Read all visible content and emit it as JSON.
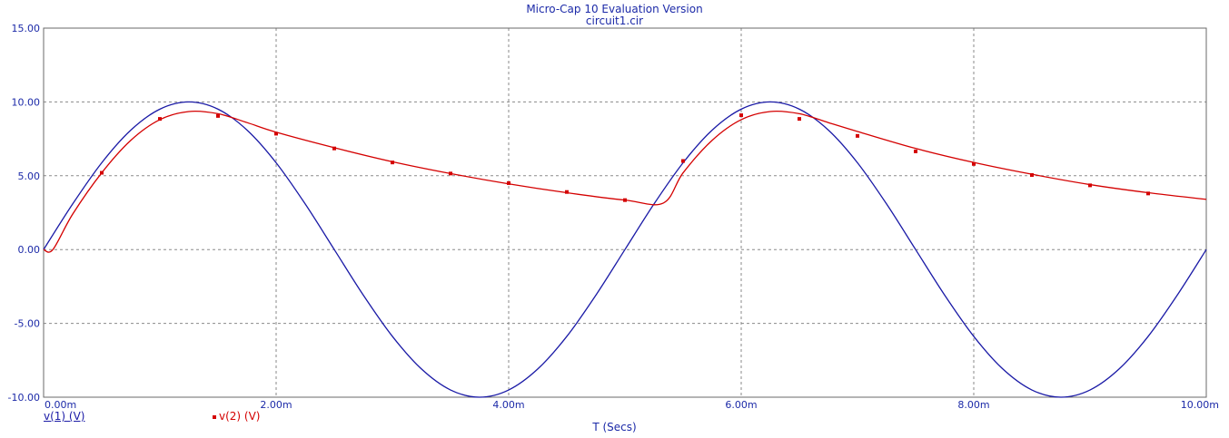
{
  "window": {
    "title": "Micro-Cap 10 Evaluation Version",
    "subtitle": "circuit1.cir"
  },
  "chart_data": {
    "type": "line",
    "title": "Micro-Cap 10 Evaluation Version",
    "subtitle": "circuit1.cir",
    "xlabel": "T (Secs)",
    "ylabel": "",
    "xlim": [
      0,
      10
    ],
    "ylim": [
      -10,
      15
    ],
    "grid": true,
    "x_ticks": [
      0,
      2,
      4,
      6,
      8,
      10
    ],
    "x_tick_labels": [
      "0.00m",
      "2.00m",
      "4.00m",
      "6.00m",
      "8.00m",
      "10.00m"
    ],
    "y_ticks": [
      -10,
      -5,
      0,
      5,
      10,
      15
    ],
    "y_tick_labels": [
      "-10.00",
      "-5.00",
      "0.00",
      "5.00",
      "10.00",
      "15.00"
    ],
    "series": [
      {
        "name": "v(1) (V)",
        "color": "#1a1aa6",
        "x": [
          0,
          0.25,
          0.5,
          0.75,
          1.0,
          1.25,
          1.5,
          1.75,
          2.0,
          2.25,
          2.5,
          2.75,
          3.0,
          3.25,
          3.5,
          3.75,
          4.0,
          4.25,
          4.5,
          4.75,
          5.0,
          5.25,
          5.5,
          5.75,
          6.0,
          6.25,
          6.5,
          6.75,
          7.0,
          7.25,
          7.5,
          7.75,
          8.0,
          8.25,
          8.5,
          8.75,
          9.0,
          9.25,
          9.5,
          9.75,
          10.0
        ],
        "values": [
          0,
          3.09,
          5.88,
          8.09,
          9.51,
          10.0,
          9.51,
          8.09,
          5.88,
          3.09,
          0,
          -3.09,
          -5.88,
          -8.09,
          -9.51,
          -10.0,
          -9.51,
          -8.09,
          -5.88,
          -3.09,
          0,
          3.09,
          5.88,
          8.09,
          9.51,
          10.0,
          9.51,
          8.09,
          5.88,
          3.09,
          0,
          -3.09,
          -5.88,
          -8.09,
          -9.51,
          -10.0,
          -9.51,
          -8.09,
          -5.88,
          -3.09,
          0
        ]
      },
      {
        "name": "v(2) (V)",
        "color": "#d40000",
        "x": [
          0,
          0.08,
          0.25,
          0.5,
          0.75,
          1.0,
          1.25,
          1.5,
          1.75,
          2.0,
          2.5,
          3.0,
          3.5,
          4.0,
          4.5,
          5.0,
          5.33,
          5.5,
          5.75,
          6.0,
          6.25,
          6.5,
          6.75,
          7.0,
          7.5,
          8.0,
          8.5,
          9.0,
          9.5,
          10.0
        ],
        "values": [
          0,
          0,
          2.4,
          5.2,
          7.4,
          8.8,
          9.35,
          9.2,
          8.6,
          7.95,
          6.9,
          5.95,
          5.15,
          4.45,
          3.85,
          3.35,
          3.15,
          5.2,
          7.4,
          8.8,
          9.35,
          9.2,
          8.6,
          8.0,
          6.85,
          5.9,
          5.1,
          4.4,
          3.85,
          3.4
        ]
      }
    ],
    "markers": {
      "series": "v(2) (V)",
      "x": [
        0.5,
        1.0,
        1.5,
        2.0,
        2.5,
        3.0,
        3.5,
        4.0,
        4.5,
        5.0,
        5.5,
        6.0,
        6.5,
        7.0,
        7.5,
        8.0,
        8.5,
        9.0,
        9.5
      ],
      "values": [
        5.2,
        8.85,
        9.05,
        7.85,
        6.85,
        5.9,
        5.15,
        4.5,
        3.9,
        3.35,
        6.0,
        9.1,
        8.85,
        7.7,
        6.65,
        5.8,
        5.05,
        4.35,
        3.8
      ]
    }
  },
  "legend": {
    "v1_label": "v(1) (V)",
    "v2_label": "v(2) (V)"
  }
}
